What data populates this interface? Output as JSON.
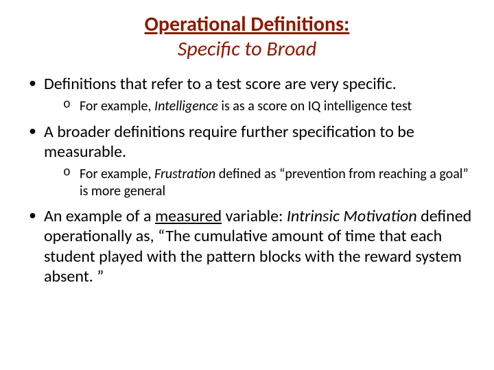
{
  "colors": {
    "title": "#8b1a00",
    "text": "#000000",
    "background": "#ffffff"
  },
  "typography": {
    "title_fontsize": 30,
    "level1_fontsize": 24,
    "level2_fontsize": 20,
    "font_family": "Calibri"
  },
  "title": {
    "line1": "Operational Definitions:",
    "line2": "Specific to Broad"
  },
  "bullets": {
    "b1": {
      "text": "Definitions that refer to a test score are very specific.",
      "sub": {
        "s1_prefix": "For example, ",
        "s1_italic": "Intelligence",
        "s1_rest": " is as a score on IQ intelligence test"
      }
    },
    "b2": {
      "text": "A broader definitions require further specification to be measurable.",
      "sub": {
        "s1_prefix": "For example, ",
        "s1_italic": "Frustration",
        "s1_rest": " defined as “prevention from reaching a goal” is more general"
      }
    },
    "b3": {
      "prefix": "An example of a ",
      "underlined": "measured",
      "mid": " variable: ",
      "italic": "Intrinsic Motivation",
      "rest": " defined operationally as, “The cumulative amount of time that each student played with the pattern blocks with the reward system absent. ”"
    }
  }
}
